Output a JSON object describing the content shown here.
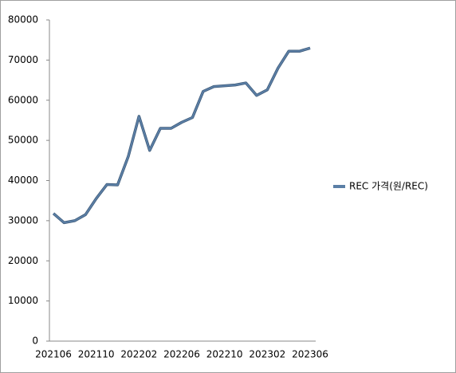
{
  "chart_data": {
    "type": "line",
    "categories": [
      "202106",
      null,
      null,
      null,
      "202110",
      null,
      null,
      null,
      "202202",
      null,
      null,
      null,
      "202206",
      null,
      null,
      null,
      "202210",
      null,
      null,
      null,
      "202302",
      null,
      null,
      null,
      "202306"
    ],
    "series": [
      {
        "name": "REC 가격(원/REC)",
        "color": "#5b7fa6",
        "values": [
          31800,
          29500,
          30000,
          31500,
          35500,
          39000,
          38900,
          46000,
          56000,
          47500,
          53000,
          53000,
          54500,
          55700,
          62200,
          63400,
          63600,
          63800,
          64300,
          61200,
          62600,
          68000,
          72200,
          72200,
          73000
        ]
      }
    ],
    "ylim": [
      0,
      80000
    ],
    "yticks": [
      0,
      10000,
      20000,
      30000,
      40000,
      50000,
      60000,
      70000,
      80000
    ],
    "grid": false,
    "legend": "right"
  }
}
